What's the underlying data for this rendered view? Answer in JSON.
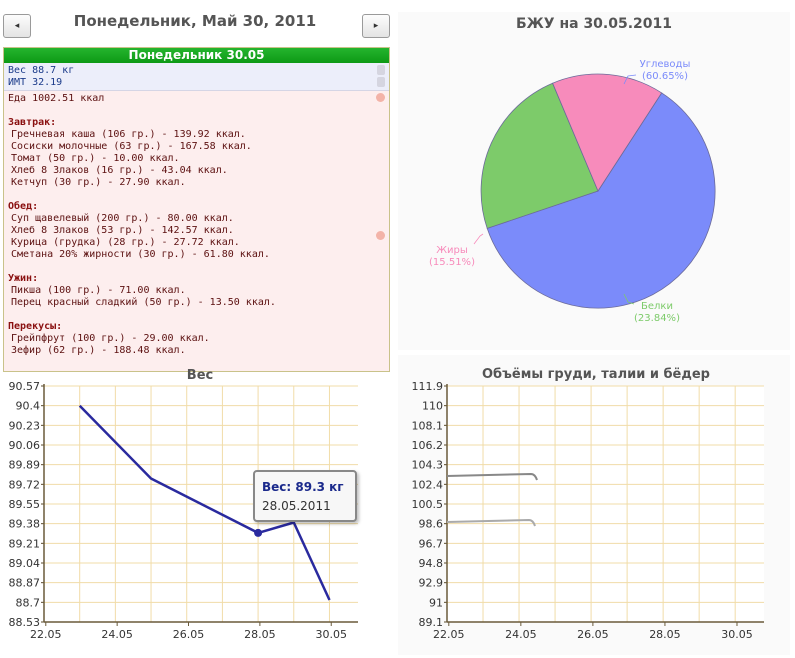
{
  "nav": {
    "prev_icon": "◂",
    "next_icon": "▸",
    "date_title": "Понедельник, Май 30, 2011"
  },
  "diary": {
    "header": "Понедельник 30.05",
    "weight": "Вес 88.7 кг",
    "bmi": "ИМТ 32.19",
    "food_total": "Еда 1002.51 ккал",
    "meals": [
      {
        "title": "Завтрак:",
        "items": [
          "Гречневая каша (106 гр.) - 139.92 ккал.",
          "Сосиски молочные (63 гр.) - 167.58 ккал.",
          "Томат (50 гр.) - 10.00 ккал.",
          "Хлеб 8 Злаков (16 гр.) - 43.04 ккал.",
          "Кетчуп (30 гр.) - 27.90 ккал."
        ]
      },
      {
        "title": "Обед:",
        "items": [
          "Суп щавелевый (200 гр.) - 80.00 ккал.",
          "Хлеб 8 Злаков (53 гр.) - 142.57 ккал.",
          "Курица (грудка) (28 гр.) - 27.72 ккал.",
          "Сметана 20% жирности (30 гр.) - 61.80 ккал."
        ]
      },
      {
        "title": "Ужин:",
        "items": [
          "Пикша (100 гр.) - 71.00 ккал.",
          "Перец красный сладкий (50 гр.) - 13.50 ккал."
        ]
      },
      {
        "title": "Перекусы:",
        "items": [
          "Грейпфрут (100 гр.) - 29.00 ккал.",
          "Зефир (62 гр.) - 188.48 ккал."
        ]
      }
    ]
  },
  "chart_data": [
    {
      "type": "pie",
      "title": "БЖУ на 30.05.2011",
      "slices": [
        {
          "name": "Углеводы",
          "label": "(60.65%)",
          "value": 60.65,
          "color": "#7b8bfa"
        },
        {
          "name": "Белки",
          "label": "(23.84%)",
          "value": 23.84,
          "color": "#7dcb6a"
        },
        {
          "name": "Жиры",
          "label": "(15.51%)",
          "value": 15.51,
          "color": "#f78bbb"
        }
      ]
    },
    {
      "type": "line",
      "title": "Вес",
      "y_ticks": [
        "90.57",
        "90.4",
        "90.23",
        "90.06",
        "89.89",
        "89.72",
        "89.55",
        "89.38",
        "89.21",
        "89.04",
        "88.87",
        "88.7",
        "88.53"
      ],
      "x_ticks": [
        "22.05",
        "24.05",
        "26.05",
        "28.05",
        "30.05"
      ],
      "ylim": [
        88.53,
        90.57
      ],
      "xlim": [
        22,
        30.8
      ],
      "series": [
        {
          "x": [
            23,
            25,
            28,
            29,
            30
          ],
          "y": [
            90.4,
            89.77,
            89.3,
            89.39,
            88.72
          ],
          "color": "#2a2a9e"
        }
      ],
      "tooltip": {
        "value": "Вес: 89.3 кг",
        "date": "28.05.2011",
        "x": 28,
        "y": 89.3
      }
    },
    {
      "type": "line",
      "title": "Объёмы груди, талии и бёдер",
      "y_ticks": [
        "111.9",
        "110",
        "108.1",
        "106.2",
        "104.3",
        "102.4",
        "100.5",
        "98.6",
        "96.7",
        "94.8",
        "92.9",
        "91",
        "89.1"
      ],
      "x_ticks": [
        "22.05",
        "24.05",
        "26.05",
        "28.05",
        "30.05"
      ],
      "ylim": [
        89.1,
        111.9
      ],
      "xlim": [
        22,
        30.8
      ]
    }
  ]
}
